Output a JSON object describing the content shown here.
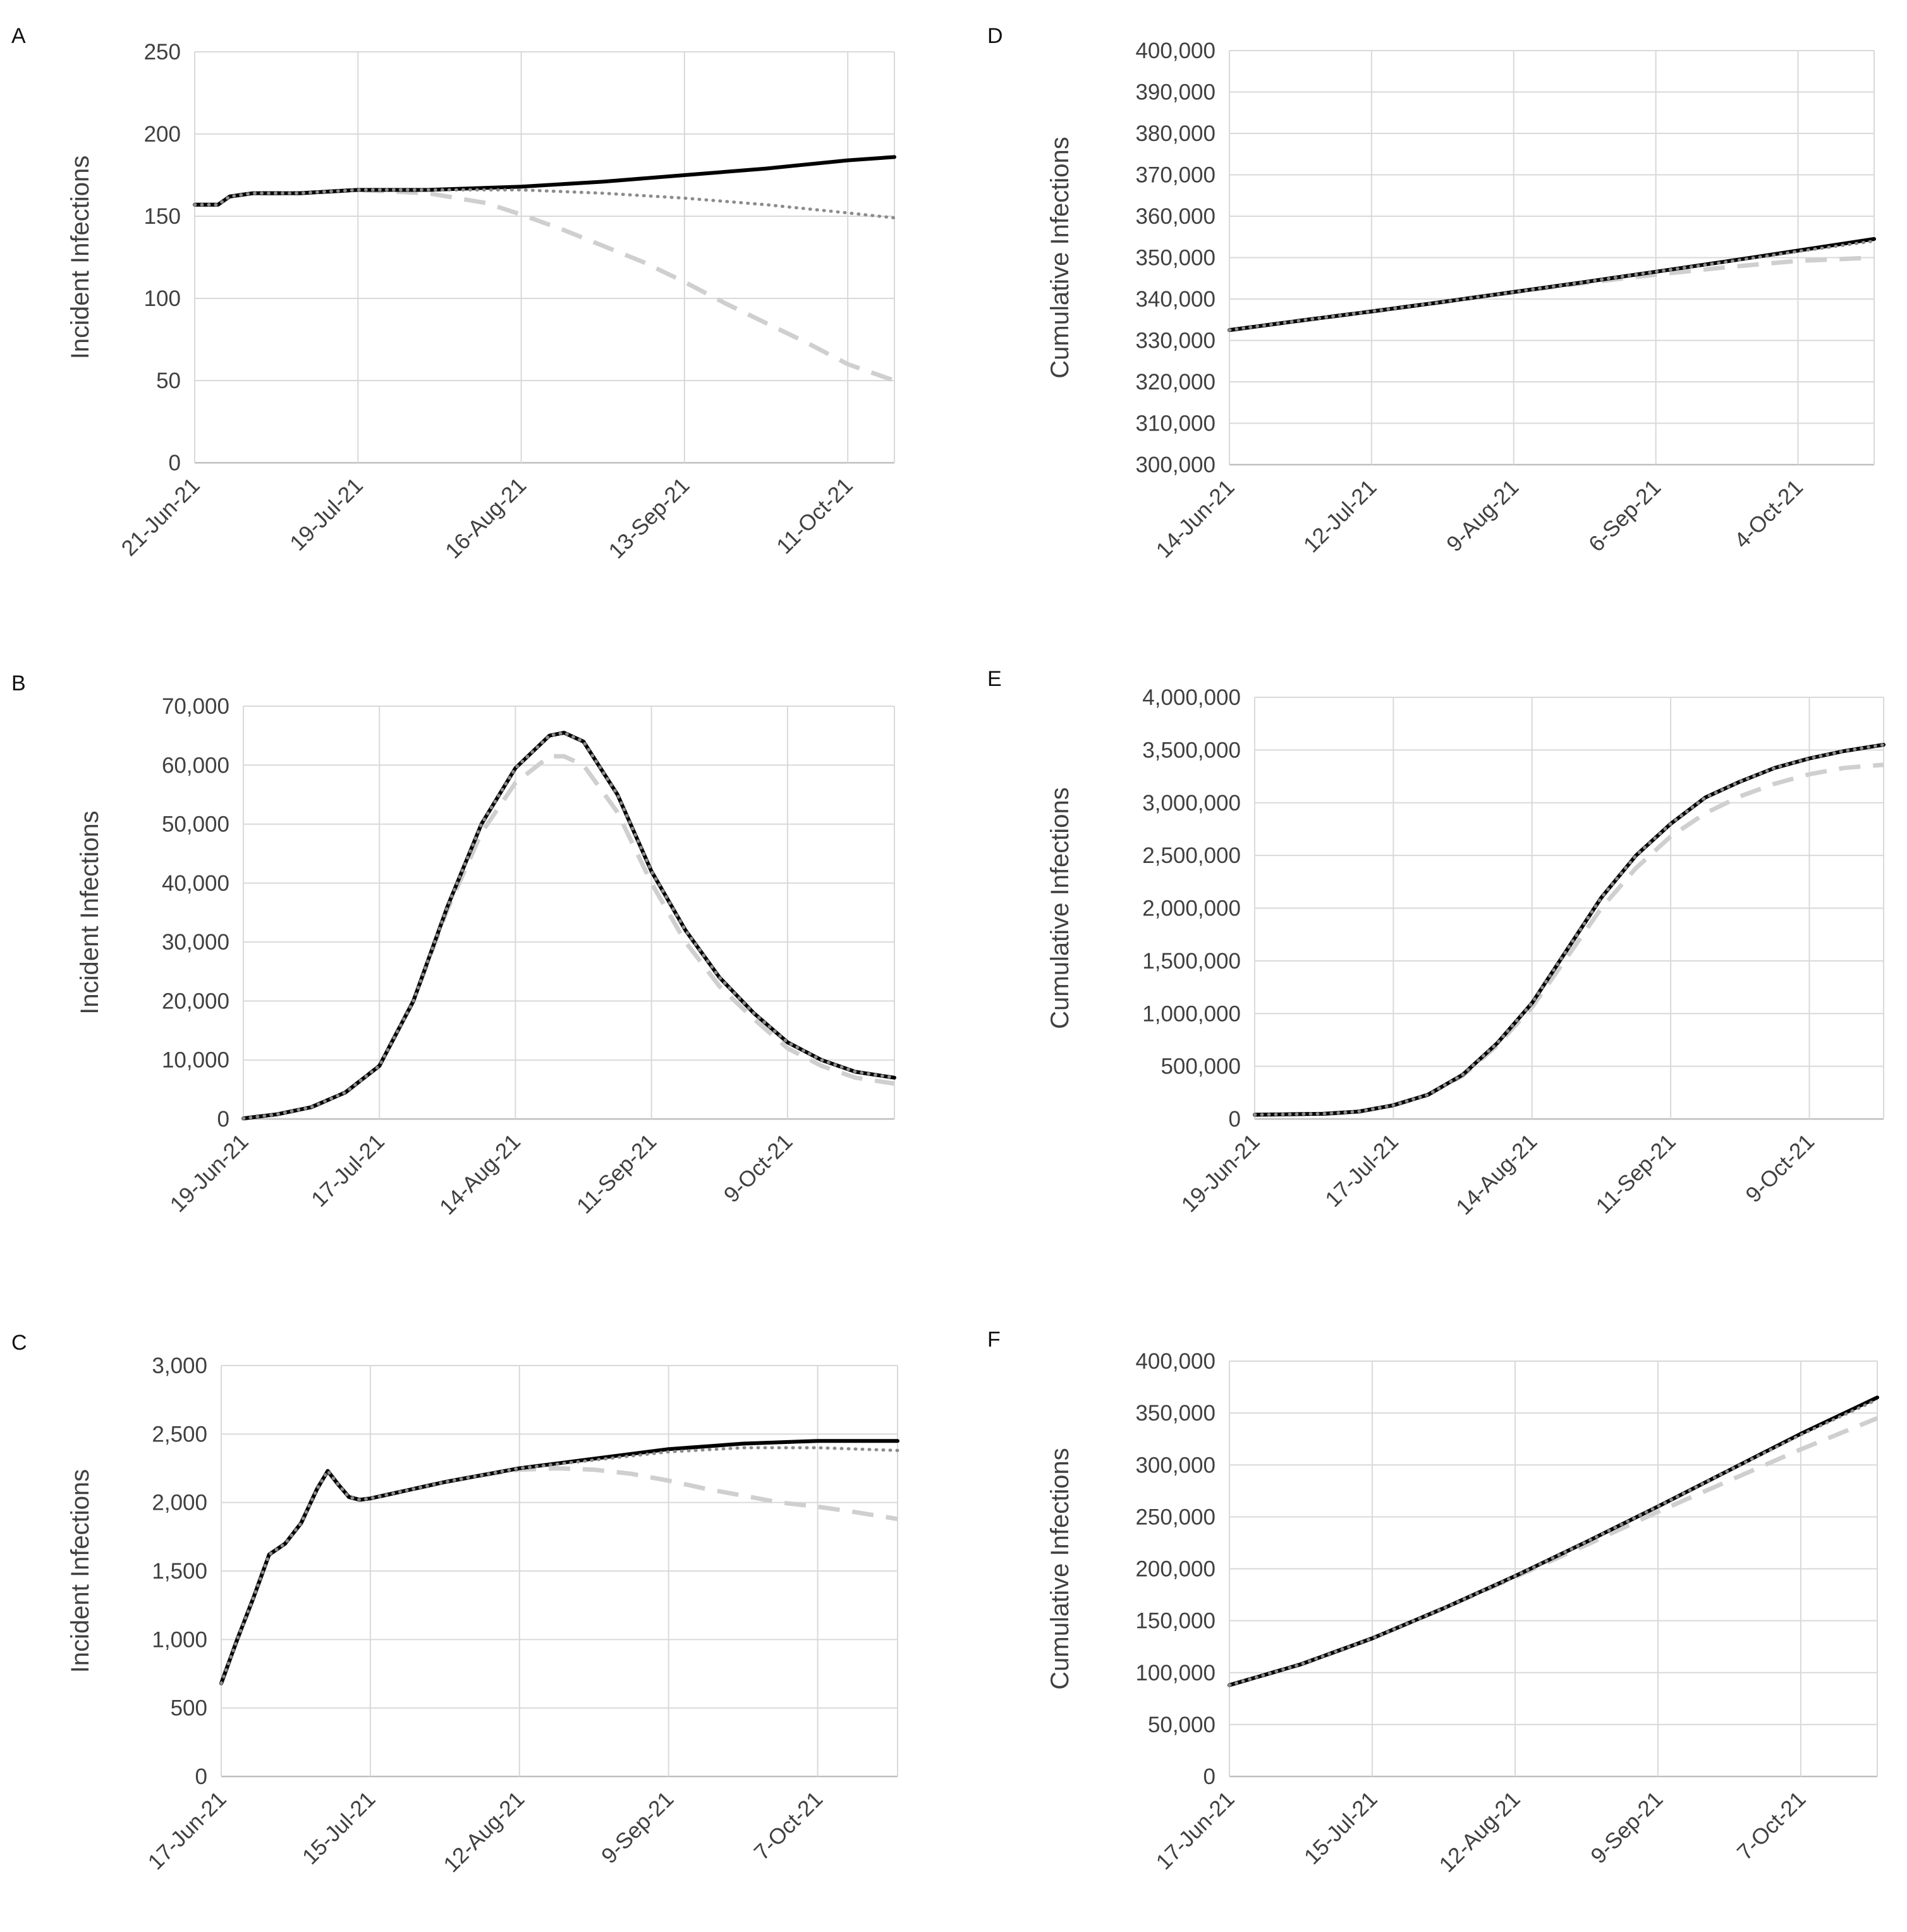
{
  "figure": {
    "line_styles": [
      {
        "name": "solid",
        "color": "#000000",
        "style": "solid"
      },
      {
        "name": "dotted",
        "color": "#808080",
        "style": "dotted"
      },
      {
        "name": "dashed",
        "color": "#cccccc",
        "style": "dashed"
      }
    ]
  },
  "chart_data": [
    {
      "id": "A",
      "type": "line",
      "letter": "A",
      "ylabel": "Incident Infections",
      "xlabel": "",
      "ylim": [
        0,
        250
      ],
      "yticks": [
        "0",
        "50",
        "100",
        "150",
        "200",
        "250"
      ],
      "xlim": [
        0,
        120
      ],
      "x_unit": "days since 21-Jun-21",
      "xtick_labels": [
        "21-Jun-21",
        "19-Jul-21",
        "16-Aug-21",
        "13-Sep-21",
        "11-Oct-21"
      ],
      "xtick_positions": [
        0,
        28,
        56,
        84,
        112
      ],
      "series": [
        {
          "name": "solid",
          "x": [
            0,
            4,
            6,
            10,
            18,
            28,
            40,
            56,
            70,
            84,
            98,
            112,
            120
          ],
          "y": [
            157,
            157,
            162,
            164,
            164,
            166,
            166,
            168,
            171,
            175,
            179,
            184,
            186
          ]
        },
        {
          "name": "dotted",
          "x": [
            0,
            4,
            6,
            10,
            18,
            28,
            40,
            56,
            70,
            84,
            98,
            112,
            120
          ],
          "y": [
            157,
            157,
            162,
            164,
            164,
            166,
            166,
            166,
            164,
            161,
            157,
            152,
            149
          ]
        },
        {
          "name": "dashed",
          "x": [
            0,
            4,
            6,
            10,
            18,
            28,
            40,
            50,
            56,
            63,
            70,
            77,
            84,
            91,
            98,
            105,
            112,
            120
          ],
          "y": [
            157,
            157,
            162,
            164,
            164,
            166,
            164,
            158,
            151,
            142,
            132,
            122,
            110,
            97,
            85,
            73,
            60,
            50
          ]
        }
      ]
    },
    {
      "id": "B",
      "type": "line",
      "letter": "B",
      "ylabel": "Incident Infections",
      "xlabel": "",
      "ylim": [
        0,
        70000
      ],
      "yticks": [
        "0",
        "10,000",
        "20,000",
        "30,000",
        "40,000",
        "50,000",
        "60,000",
        "70,000"
      ],
      "xlim": [
        0,
        134
      ],
      "x_unit": "days since 19-Jun-21",
      "xtick_labels": [
        "19-Jun-21",
        "17-Jul-21",
        "14-Aug-21",
        "11-Sep-21",
        "9-Oct-21"
      ],
      "xtick_positions": [
        0,
        28,
        56,
        84,
        112
      ],
      "series": [
        {
          "name": "solid",
          "x": [
            0,
            7,
            14,
            21,
            28,
            35,
            42,
            49,
            56,
            63,
            66,
            70,
            77,
            84,
            91,
            98,
            105,
            112,
            119,
            126,
            134
          ],
          "y": [
            100,
            800,
            2000,
            4500,
            9000,
            20000,
            36000,
            50000,
            59500,
            65000,
            65500,
            64000,
            55000,
            42000,
            32000,
            24000,
            18000,
            13000,
            10000,
            8000,
            7000
          ]
        },
        {
          "name": "dotted",
          "x": [
            0,
            7,
            14,
            21,
            28,
            35,
            42,
            49,
            56,
            63,
            66,
            70,
            77,
            84,
            91,
            98,
            105,
            112,
            119,
            126,
            134
          ],
          "y": [
            100,
            800,
            2000,
            4500,
            9000,
            20000,
            36000,
            50000,
            59500,
            65000,
            65500,
            64000,
            55000,
            42000,
            32000,
            24000,
            18000,
            13000,
            10000,
            8000,
            7000
          ]
        },
        {
          "name": "dashed",
          "x": [
            0,
            7,
            14,
            21,
            28,
            35,
            42,
            49,
            56,
            63,
            66,
            70,
            77,
            84,
            91,
            98,
            105,
            112,
            119,
            126,
            134
          ],
          "y": [
            100,
            800,
            2000,
            4500,
            9000,
            20000,
            35500,
            48500,
            57000,
            61500,
            61500,
            60000,
            52000,
            40000,
            30000,
            22500,
            17000,
            12000,
            9000,
            7000,
            6000
          ]
        }
      ]
    },
    {
      "id": "C",
      "type": "line",
      "letter": "C",
      "ylabel": "Incident Infections",
      "xlabel": "",
      "ylim": [
        0,
        3000
      ],
      "yticks": [
        "0",
        "500",
        "1,000",
        "1,500",
        "2,000",
        "2,500",
        "3,000"
      ],
      "xlim": [
        0,
        127
      ],
      "x_unit": "days since 17-Jun-21",
      "xtick_labels": [
        "17-Jun-21",
        "15-Jul-21",
        "12-Aug-21",
        "9-Sep-21",
        "7-Oct-21"
      ],
      "xtick_positions": [
        0,
        28,
        56,
        84,
        112
      ],
      "series": [
        {
          "name": "solid",
          "x": [
            0,
            3,
            6,
            9,
            12,
            15,
            18,
            20,
            22,
            24,
            26,
            28,
            35,
            42,
            49,
            56,
            70,
            84,
            98,
            112,
            127
          ],
          "y": [
            680,
            1000,
            1300,
            1620,
            1700,
            1850,
            2100,
            2230,
            2130,
            2040,
            2020,
            2030,
            2090,
            2150,
            2200,
            2250,
            2320,
            2390,
            2430,
            2450,
            2450
          ]
        },
        {
          "name": "dotted",
          "x": [
            0,
            3,
            6,
            9,
            12,
            15,
            18,
            20,
            22,
            24,
            26,
            28,
            35,
            42,
            49,
            56,
            70,
            84,
            98,
            112,
            127
          ],
          "y": [
            680,
            1000,
            1300,
            1620,
            1700,
            1850,
            2100,
            2230,
            2130,
            2040,
            2020,
            2030,
            2090,
            2150,
            2200,
            2250,
            2310,
            2370,
            2400,
            2400,
            2380
          ]
        },
        {
          "name": "dashed",
          "x": [
            0,
            3,
            6,
            9,
            12,
            15,
            18,
            20,
            22,
            24,
            26,
            28,
            35,
            42,
            49,
            56,
            63,
            70,
            77,
            84,
            91,
            98,
            105,
            112,
            119,
            127
          ],
          "y": [
            680,
            1000,
            1300,
            1620,
            1700,
            1850,
            2100,
            2230,
            2130,
            2040,
            2020,
            2030,
            2090,
            2150,
            2200,
            2240,
            2250,
            2240,
            2210,
            2160,
            2100,
            2050,
            2000,
            1970,
            1930,
            1880
          ]
        }
      ]
    },
    {
      "id": "D",
      "type": "line",
      "letter": "D",
      "ylabel": "Cumulative Infections",
      "xlabel": "",
      "ylim": [
        300000,
        400000
      ],
      "yticks": [
        "300,000",
        "310,000",
        "320,000",
        "330,000",
        "340,000",
        "350,000",
        "360,000",
        "370,000",
        "380,000",
        "390,000",
        "400,000"
      ],
      "xlim": [
        0,
        127
      ],
      "x_unit": "days since 14-Jun-21",
      "xtick_labels": [
        "14-Jun-21",
        "12-Jul-21",
        "9-Aug-21",
        "6-Sep-21",
        "4-Oct-21"
      ],
      "xtick_positions": [
        0,
        28,
        56,
        84,
        112
      ],
      "series": [
        {
          "name": "solid",
          "x": [
            0,
            14,
            28,
            42,
            56,
            70,
            84,
            98,
            112,
            127
          ],
          "y": [
            332500,
            334800,
            337000,
            339300,
            341700,
            344100,
            346600,
            349100,
            351700,
            354500
          ]
        },
        {
          "name": "dotted",
          "x": [
            0,
            14,
            28,
            42,
            56,
            70,
            84,
            98,
            112,
            127
          ],
          "y": [
            332500,
            334800,
            337000,
            339300,
            341700,
            344100,
            346600,
            349000,
            351500,
            354000
          ]
        },
        {
          "name": "dashed",
          "x": [
            0,
            14,
            28,
            42,
            56,
            70,
            84,
            98,
            112,
            127
          ],
          "y": [
            332500,
            334800,
            337000,
            339300,
            341700,
            343900,
            345900,
            347700,
            349200,
            350000
          ]
        }
      ]
    },
    {
      "id": "E",
      "type": "line",
      "letter": "E",
      "ylabel": "Cumulative Infections",
      "xlabel": "",
      "ylim": [
        0,
        4000000
      ],
      "yticks": [
        "0",
        "500,000",
        "1,000,000",
        "1,500,000",
        "2,000,000",
        "2,500,000",
        "3,000,000",
        "3,500,000",
        "4,000,000"
      ],
      "xlim": [
        0,
        127
      ],
      "x_unit": "days since 19-Jun-21",
      "xtick_labels": [
        "19-Jun-21",
        "17-Jul-21",
        "14-Aug-21",
        "11-Sep-21",
        "9-Oct-21"
      ],
      "xtick_positions": [
        0,
        28,
        56,
        84,
        112
      ],
      "series": [
        {
          "name": "solid",
          "x": [
            0,
            7,
            14,
            21,
            28,
            35,
            42,
            49,
            56,
            63,
            70,
            77,
            84,
            91,
            98,
            105,
            112,
            119,
            127
          ],
          "y": [
            40000,
            45000,
            50000,
            70000,
            130000,
            230000,
            420000,
            720000,
            1100000,
            1600000,
            2100000,
            2500000,
            2800000,
            3050000,
            3200000,
            3330000,
            3420000,
            3490000,
            3550000
          ]
        },
        {
          "name": "dotted",
          "x": [
            0,
            7,
            14,
            21,
            28,
            35,
            42,
            49,
            56,
            63,
            70,
            77,
            84,
            91,
            98,
            105,
            112,
            119,
            127
          ],
          "y": [
            40000,
            45000,
            50000,
            70000,
            130000,
            230000,
            420000,
            720000,
            1100000,
            1600000,
            2100000,
            2500000,
            2800000,
            3050000,
            3200000,
            3330000,
            3420000,
            3490000,
            3550000
          ]
        },
        {
          "name": "dashed",
          "x": [
            0,
            7,
            14,
            21,
            28,
            35,
            42,
            49,
            56,
            63,
            70,
            77,
            84,
            91,
            98,
            105,
            112,
            119,
            127
          ],
          "y": [
            40000,
            45000,
            50000,
            70000,
            130000,
            230000,
            410000,
            700000,
            1060000,
            1530000,
            2000000,
            2380000,
            2680000,
            2900000,
            3060000,
            3180000,
            3270000,
            3330000,
            3360000
          ]
        }
      ]
    },
    {
      "id": "F",
      "type": "line",
      "letter": "F",
      "ylabel": "Cumulative Infections",
      "xlabel": "",
      "ylim": [
        0,
        400000
      ],
      "yticks": [
        "0",
        "50,000",
        "100,000",
        "150,000",
        "200,000",
        "250,000",
        "300,000",
        "350,000",
        "400,000"
      ],
      "xlim": [
        0,
        127
      ],
      "x_unit": "days since 17-Jun-21",
      "xtick_labels": [
        "17-Jun-21",
        "15-Jul-21",
        "12-Aug-21",
        "9-Sep-21",
        "7-Oct-21"
      ],
      "xtick_positions": [
        0,
        28,
        56,
        84,
        112
      ],
      "series": [
        {
          "name": "solid",
          "x": [
            0,
            14,
            28,
            42,
            56,
            70,
            84,
            98,
            112,
            127
          ],
          "y": [
            88000,
            108000,
            133000,
            162000,
            193000,
            226000,
            260000,
            295000,
            330000,
            365000
          ]
        },
        {
          "name": "dotted",
          "x": [
            0,
            14,
            28,
            42,
            56,
            70,
            84,
            98,
            112,
            127
          ],
          "y": [
            88000,
            108000,
            133000,
            162000,
            193000,
            226000,
            260000,
            295000,
            329000,
            363000
          ]
        },
        {
          "name": "dashed",
          "x": [
            0,
            14,
            28,
            42,
            56,
            70,
            84,
            98,
            112,
            127
          ],
          "y": [
            88000,
            108000,
            133000,
            162000,
            192000,
            223000,
            255000,
            285000,
            315000,
            345000
          ]
        }
      ]
    }
  ]
}
